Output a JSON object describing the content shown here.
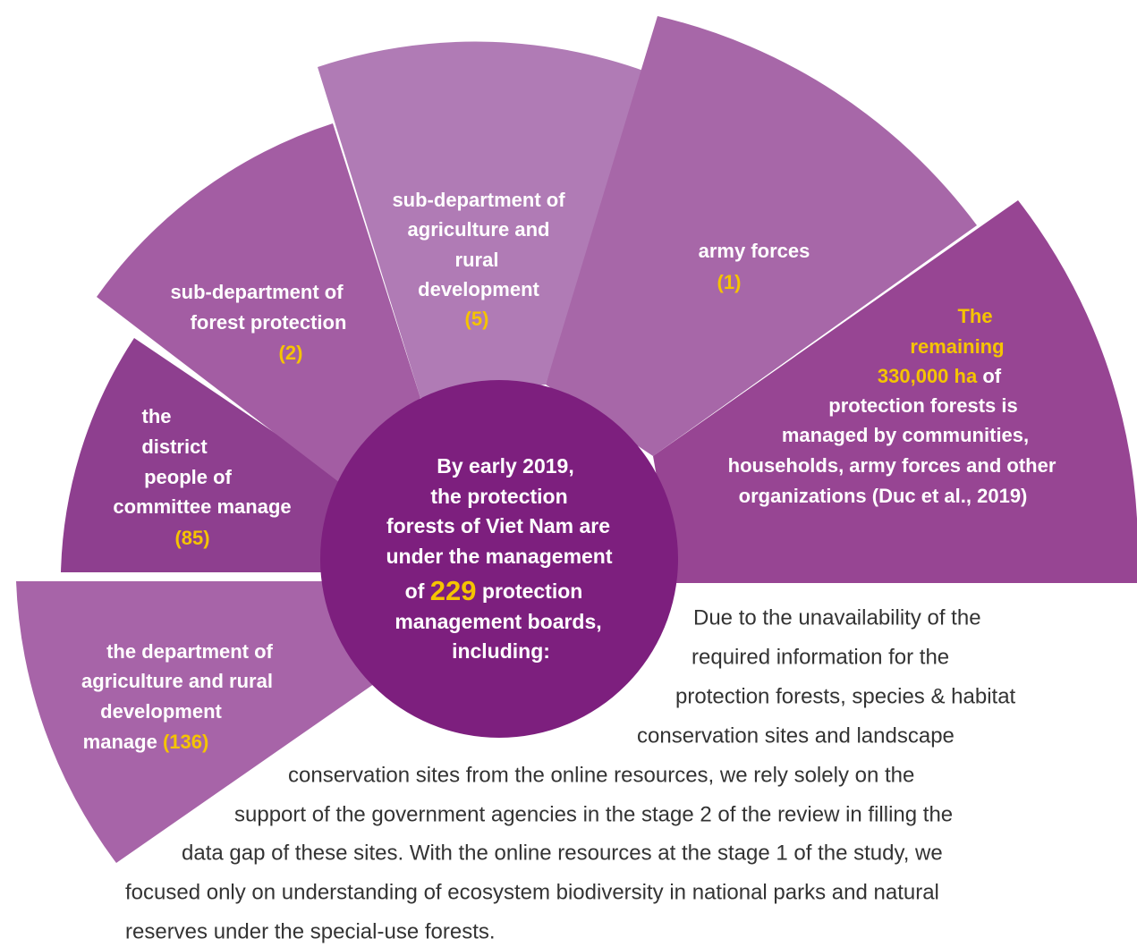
{
  "segments": [
    {
      "lines": [
        "the department of",
        "agriculture and rural",
        "development",
        "manage"
      ],
      "count": "(136)"
    },
    {
      "lines": [
        "the",
        "district",
        "people of",
        "committee manage"
      ],
      "count": "(85)"
    },
    {
      "lines": [
        "sub-department of",
        "forest protection"
      ],
      "count": "(2)"
    },
    {
      "lines": [
        "sub-department of",
        "agriculture and",
        "rural",
        "development"
      ],
      "count": "(5)"
    },
    {
      "lines": [
        "army forces"
      ],
      "count": "(1)"
    },
    {
      "highlight": [
        "The",
        "remaining",
        "330,000 ha"
      ],
      "lines": [
        "of",
        "protection forests is",
        "managed by communities,",
        "households, army forces and other",
        "organizations (Duc et al., 2019)"
      ]
    }
  ],
  "center": {
    "lines_before": [
      "By early 2019,",
      "the protection",
      "forests of Viet Nam are",
      "under the management"
    ],
    "prefix": "of",
    "number": "229",
    "suffix": "protection",
    "lines_after": [
      "management boards,",
      "including:"
    ]
  },
  "paragraph": [
    "Due to the unavailability of the",
    "required information for the",
    "protection forests, species & habitat",
    "conservation sites and landscape",
    "conservation sites from the online resources, we rely solely on the",
    "support of the government agencies in the stage 2 of the review in filling the",
    "data gap of these sites. With the online resources at the stage 1 of the study, we",
    "focused only on understanding of ecosystem biodiversity in national parks and natural",
    "reserves under the special-use forests."
  ]
}
